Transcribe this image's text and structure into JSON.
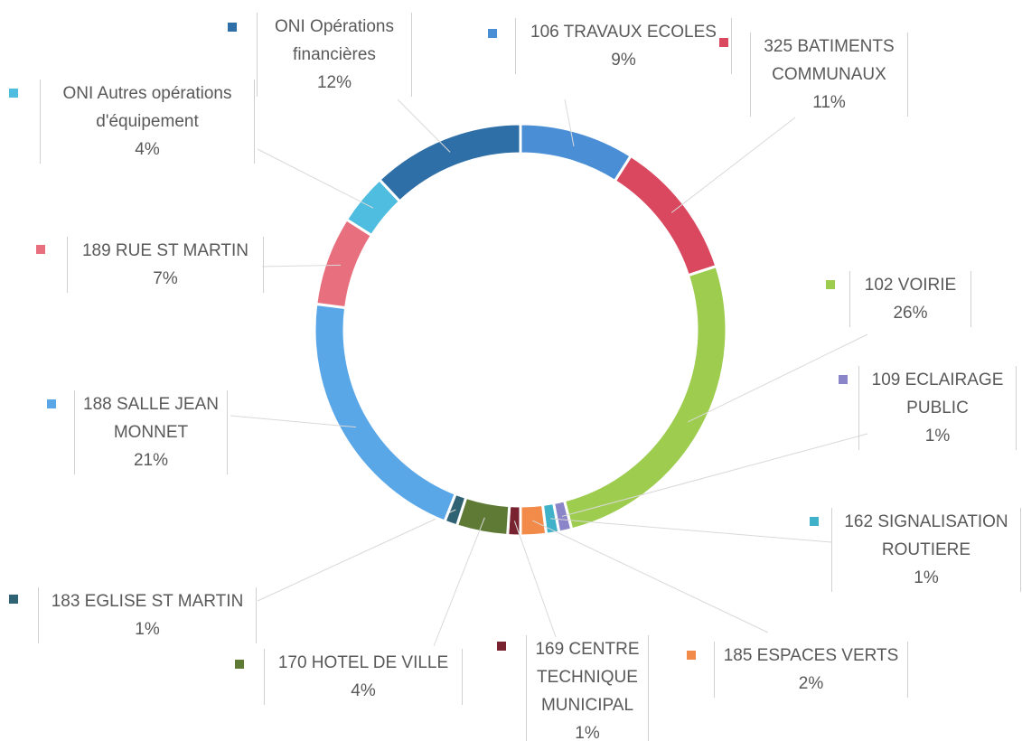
{
  "chart_data": {
    "type": "donut",
    "categories": [
      "106 TRAVAUX ECOLES",
      "325 BATIMENTS COMMUNAUX",
      "102 VOIRIE",
      "109 ECLAIRAGE PUBLIC",
      "162 SIGNALISATION ROUTIERE",
      "185 ESPACES VERTS",
      "169 CENTRE TECHNIQUE MUNICIPAL",
      "170 HOTEL DE VILLE",
      "183 EGLISE ST MARTIN",
      "188 SALLE JEAN MONNET",
      "189 RUE ST MARTIN",
      "ONI Autres opérations d'équipement",
      "ONI Opérations financières"
    ],
    "values": [
      9,
      11,
      26,
      1,
      1,
      2,
      1,
      4,
      1,
      21,
      7,
      4,
      12
    ],
    "value_labels": [
      "9%",
      "11%",
      "26%",
      "1%",
      "1%",
      "2%",
      "1%",
      "4%",
      "1%",
      "21%",
      "7%",
      "4%",
      "12%"
    ],
    "colors": [
      "#4a8fd6",
      "#d9485f",
      "#9dcc4f",
      "#8a84c8",
      "#3fb1c8",
      "#f28a4a",
      "#7a2330",
      "#5e7a35",
      "#2f6272",
      "#5aa7e8",
      "#e8707e",
      "#4fbde0",
      "#2f6fa8"
    ]
  }
}
